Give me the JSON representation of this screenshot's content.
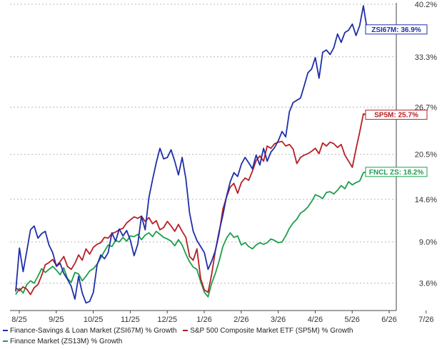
{
  "chart_data": {
    "type": "line",
    "x_ticks": [
      "8/25",
      "9/25",
      "10/25",
      "11/25",
      "12/25",
      "1/26",
      "2/26",
      "3/26",
      "4/26",
      "5/26",
      "6/26",
      "7/26"
    ],
    "y_ticks": [
      "3.6%",
      "9.0%",
      "14.6%",
      "20.5%",
      "26.7%",
      "33.3%",
      "40.2%"
    ],
    "y_tick_values": [
      3.6,
      9.0,
      14.6,
      20.5,
      26.7,
      33.3,
      40.2
    ],
    "ylim": [
      0,
      40.2
    ],
    "y_axis_position": "right",
    "grid": "horizontal dotted",
    "legend_position": "bottom",
    "series": [
      {
        "name": "Finance-Savings & Loan Market (ZSI67M) % Growth",
        "end_label": "ZSI67M: 36.9%",
        "end_value": 36.9,
        "color": "#1f2fa8",
        "values": [
          [
            0,
            2.5
          ],
          [
            0.2,
            8.2
          ],
          [
            0.4,
            5.1
          ],
          [
            0.6,
            7.8
          ],
          [
            0.8,
            10.6
          ],
          [
            1,
            11.1
          ],
          [
            1.2,
            9.5
          ],
          [
            1.4,
            10.1
          ],
          [
            1.6,
            10.4
          ],
          [
            1.8,
            8.6
          ],
          [
            2,
            7.6
          ],
          [
            2.2,
            5.8
          ],
          [
            2.4,
            6.2
          ],
          [
            2.6,
            4.9
          ],
          [
            2.8,
            4.1
          ],
          [
            3,
            3.2
          ],
          [
            3.2,
            1.5
          ],
          [
            3.4,
            4.5
          ],
          [
            3.6,
            2.3
          ],
          [
            3.8,
            1.0
          ],
          [
            4,
            1.2
          ],
          [
            4.2,
            2.4
          ],
          [
            4.4,
            6.0
          ],
          [
            4.6,
            7.3
          ],
          [
            4.8,
            6.8
          ],
          [
            5,
            7.6
          ],
          [
            5.2,
            10.2
          ],
          [
            5.4,
            9.1
          ],
          [
            5.6,
            10.7
          ],
          [
            5.8,
            9.8
          ],
          [
            6,
            10.5
          ],
          [
            6.2,
            9.2
          ],
          [
            6.4,
            7.2
          ],
          [
            6.6,
            8.7
          ],
          [
            6.8,
            12.4
          ],
          [
            7,
            10.6
          ],
          [
            7.2,
            14.8
          ],
          [
            7.4,
            17.2
          ],
          [
            7.6,
            19.4
          ],
          [
            7.8,
            21.3
          ],
          [
            8,
            19.9
          ],
          [
            8.2,
            20.1
          ],
          [
            8.4,
            21.1
          ],
          [
            8.6,
            19.6
          ],
          [
            8.8,
            17.8
          ],
          [
            9,
            20.1
          ],
          [
            9.2,
            17.3
          ],
          [
            9.4,
            12.8
          ],
          [
            9.6,
            10.4
          ],
          [
            9.8,
            9.2
          ],
          [
            10,
            8.4
          ],
          [
            10.2,
            7.6
          ],
          [
            10.4,
            5.4
          ],
          [
            10.6,
            6.5
          ],
          [
            10.8,
            7.9
          ],
          [
            11,
            10.4
          ],
          [
            11.2,
            12.5
          ],
          [
            11.4,
            15.0
          ],
          [
            11.6,
            16.9
          ],
          [
            11.8,
            18.1
          ],
          [
            12,
            17.6
          ],
          [
            12.2,
            19.2
          ],
          [
            12.4,
            20.1
          ],
          [
            12.6,
            19.4
          ],
          [
            12.8,
            18.6
          ],
          [
            13,
            20.4
          ],
          [
            13.2,
            19.1
          ],
          [
            13.4,
            21.3
          ],
          [
            13.6,
            19.6
          ],
          [
            13.8,
            20.8
          ],
          [
            14,
            21.4
          ],
          [
            14.2,
            22.3
          ],
          [
            14.4,
            23.5
          ],
          [
            14.6,
            22.8
          ],
          [
            14.8,
            26.1
          ],
          [
            15,
            27.3
          ],
          [
            15.2,
            27.6
          ],
          [
            15.4,
            27.9
          ],
          [
            15.6,
            29.5
          ],
          [
            15.8,
            31.2
          ],
          [
            16,
            31.7
          ],
          [
            16.2,
            33.2
          ],
          [
            16.4,
            30.5
          ],
          [
            16.6,
            33.9
          ],
          [
            16.8,
            34.2
          ],
          [
            17,
            33.6
          ],
          [
            17.2,
            34.5
          ],
          [
            17.4,
            36.3
          ],
          [
            17.6,
            35.2
          ],
          [
            17.8,
            36.5
          ],
          [
            18,
            36.8
          ],
          [
            18.2,
            37.6
          ],
          [
            18.4,
            36.1
          ],
          [
            18.6,
            37.4
          ],
          [
            18.8,
            40.0
          ],
          [
            19,
            36.9
          ]
        ]
      },
      {
        "name": "S&P 500 Composite Market ETF (SP5M) % Growth",
        "end_label": "SP5M: 25.7%",
        "end_value": 25.7,
        "color": "#b52025",
        "values": [
          [
            0,
            3.0
          ],
          [
            0.2,
            2.6
          ],
          [
            0.4,
            3.1
          ],
          [
            0.6,
            2.8
          ],
          [
            0.8,
            2.1
          ],
          [
            1,
            3.0
          ],
          [
            1.2,
            3.4
          ],
          [
            1.4,
            4.6
          ],
          [
            1.6,
            6.0
          ],
          [
            1.8,
            6.3
          ],
          [
            2,
            6.7
          ],
          [
            2.2,
            5.9
          ],
          [
            2.4,
            6.4
          ],
          [
            2.6,
            7.1
          ],
          [
            2.8,
            5.8
          ],
          [
            3,
            5.4
          ],
          [
            3.2,
            6.2
          ],
          [
            3.4,
            7.3
          ],
          [
            3.6,
            6.6
          ],
          [
            3.8,
            8.1
          ],
          [
            4,
            7.4
          ],
          [
            4.2,
            8.3
          ],
          [
            4.4,
            8.7
          ],
          [
            4.6,
            8.9
          ],
          [
            4.8,
            9.6
          ],
          [
            5,
            9.5
          ],
          [
            5.2,
            10.1
          ],
          [
            5.4,
            10.3
          ],
          [
            5.6,
            10.6
          ],
          [
            5.8,
            10.8
          ],
          [
            6,
            11.5
          ],
          [
            6.2,
            11.9
          ],
          [
            6.4,
            12.3
          ],
          [
            6.6,
            12.1
          ],
          [
            6.8,
            12.4
          ],
          [
            7,
            11.7
          ],
          [
            7.2,
            12.2
          ],
          [
            7.4,
            11.4
          ],
          [
            7.6,
            11.8
          ],
          [
            7.8,
            10.6
          ],
          [
            8,
            10.9
          ],
          [
            8.2,
            11.7
          ],
          [
            8.4,
            11.1
          ],
          [
            8.6,
            10.4
          ],
          [
            8.8,
            11.3
          ],
          [
            9,
            10.4
          ],
          [
            9.2,
            9.6
          ],
          [
            9.4,
            7.1
          ],
          [
            9.6,
            6.6
          ],
          [
            9.8,
            8.1
          ],
          [
            10,
            4.2
          ],
          [
            10.2,
            2.7
          ],
          [
            10.4,
            2.4
          ],
          [
            10.6,
            4.8
          ],
          [
            10.8,
            7.9
          ],
          [
            11,
            10.1
          ],
          [
            11.2,
            13.3
          ],
          [
            11.4,
            14.9
          ],
          [
            11.6,
            16.2
          ],
          [
            11.8,
            16.7
          ],
          [
            12,
            15.4
          ],
          [
            12.2,
            16.8
          ],
          [
            12.4,
            17.4
          ],
          [
            12.6,
            17.1
          ],
          [
            12.8,
            18.3
          ],
          [
            13,
            19.7
          ],
          [
            13.2,
            20.3
          ],
          [
            13.4,
            19.6
          ],
          [
            13.6,
            21.6
          ],
          [
            13.8,
            21.3
          ],
          [
            14,
            21.9
          ],
          [
            14.2,
            22.1
          ],
          [
            14.4,
            22.2
          ],
          [
            14.6,
            21.6
          ],
          [
            14.8,
            21.8
          ],
          [
            15,
            21.2
          ],
          [
            15.2,
            19.3
          ],
          [
            15.4,
            20.1
          ],
          [
            15.6,
            20.4
          ],
          [
            15.8,
            20.6
          ],
          [
            16,
            20.9
          ],
          [
            16.2,
            21.3
          ],
          [
            16.4,
            20.6
          ],
          [
            16.6,
            22.0
          ],
          [
            16.8,
            21.6
          ],
          [
            17,
            22.1
          ],
          [
            17.2,
            21.9
          ],
          [
            17.4,
            21.4
          ],
          [
            17.6,
            21.8
          ],
          [
            17.8,
            20.4
          ],
          [
            18,
            19.6
          ],
          [
            18.2,
            18.8
          ],
          [
            18.4,
            21.2
          ],
          [
            18.6,
            23.4
          ],
          [
            18.8,
            25.8
          ],
          [
            19,
            25.7
          ]
        ]
      },
      {
        "name": "Finance Market (ZS13M) % Growth",
        "end_label": "FNCL ZS: 18.2%",
        "end_value": 18.2,
        "color": "#1e9e4c",
        "values": [
          [
            0,
            2.1
          ],
          [
            0.2,
            2.9
          ],
          [
            0.4,
            2.3
          ],
          [
            0.6,
            3.4
          ],
          [
            0.8,
            3.9
          ],
          [
            1,
            3.6
          ],
          [
            1.2,
            4.5
          ],
          [
            1.4,
            5.5
          ],
          [
            1.6,
            5.0
          ],
          [
            1.8,
            5.4
          ],
          [
            2,
            5.8
          ],
          [
            2.2,
            5.3
          ],
          [
            2.4,
            4.7
          ],
          [
            2.6,
            5.6
          ],
          [
            2.8,
            4.2
          ],
          [
            3,
            3.7
          ],
          [
            3.2,
            5.0
          ],
          [
            3.4,
            4.8
          ],
          [
            3.6,
            3.9
          ],
          [
            3.8,
            4.5
          ],
          [
            4,
            5.2
          ],
          [
            4.2,
            5.5
          ],
          [
            4.4,
            6.1
          ],
          [
            4.6,
            6.9
          ],
          [
            4.8,
            7.8
          ],
          [
            5,
            8.6
          ],
          [
            5.2,
            8.4
          ],
          [
            5.4,
            9.2
          ],
          [
            5.6,
            9.0
          ],
          [
            5.8,
            9.6
          ],
          [
            6,
            9.1
          ],
          [
            6.2,
            9.8
          ],
          [
            6.4,
            9.7
          ],
          [
            6.6,
            10.0
          ],
          [
            6.8,
            9.3
          ],
          [
            7,
            9.9
          ],
          [
            7.2,
            10.2
          ],
          [
            7.4,
            9.7
          ],
          [
            7.6,
            10.4
          ],
          [
            7.8,
            10.0
          ],
          [
            8,
            9.6
          ],
          [
            8.2,
            9.4
          ],
          [
            8.4,
            9.1
          ],
          [
            8.6,
            8.5
          ],
          [
            8.8,
            9.3
          ],
          [
            9,
            8.6
          ],
          [
            9.2,
            7.4
          ],
          [
            9.4,
            6.4
          ],
          [
            9.6,
            5.7
          ],
          [
            9.8,
            5.4
          ],
          [
            10,
            3.8
          ],
          [
            10.2,
            2.4
          ],
          [
            10.4,
            1.8
          ],
          [
            10.6,
            3.6
          ],
          [
            10.8,
            4.9
          ],
          [
            11,
            6.5
          ],
          [
            11.2,
            8.4
          ],
          [
            11.4,
            9.5
          ],
          [
            11.6,
            10.2
          ],
          [
            11.8,
            9.6
          ],
          [
            12,
            9.8
          ],
          [
            12.2,
            8.6
          ],
          [
            12.4,
            8.9
          ],
          [
            12.6,
            8.4
          ],
          [
            12.8,
            8.1
          ],
          [
            13,
            8.6
          ],
          [
            13.2,
            8.9
          ],
          [
            13.4,
            8.7
          ],
          [
            13.6,
            8.9
          ],
          [
            13.8,
            9.4
          ],
          [
            14,
            9.2
          ],
          [
            14.2,
            8.9
          ],
          [
            14.4,
            9.0
          ],
          [
            14.6,
            9.8
          ],
          [
            14.8,
            10.8
          ],
          [
            15,
            11.5
          ],
          [
            15.2,
            12.0
          ],
          [
            15.4,
            12.8
          ],
          [
            15.6,
            13.1
          ],
          [
            15.8,
            13.6
          ],
          [
            16,
            14.3
          ],
          [
            16.2,
            15.2
          ],
          [
            16.4,
            15.0
          ],
          [
            16.6,
            14.7
          ],
          [
            16.8,
            15.5
          ],
          [
            17,
            15.6
          ],
          [
            17.2,
            15.3
          ],
          [
            17.4,
            15.8
          ],
          [
            17.6,
            16.4
          ],
          [
            17.8,
            16.0
          ],
          [
            18,
            16.9
          ],
          [
            18.2,
            16.5
          ],
          [
            18.4,
            16.8
          ],
          [
            18.6,
            17.0
          ],
          [
            18.8,
            18.1
          ],
          [
            19,
            18.2
          ]
        ]
      }
    ]
  },
  "legend": {
    "items": [
      {
        "label": "Finance-Savings & Loan Market (ZSI67M) % Growth",
        "color": "#1f2fa8"
      },
      {
        "label": "S&P 500 Composite Market ETF (SP5M) % Growth",
        "color": "#b52025"
      },
      {
        "label": "Finance Market (ZS13M) % Growth",
        "color": "#1e9e4c"
      }
    ]
  }
}
